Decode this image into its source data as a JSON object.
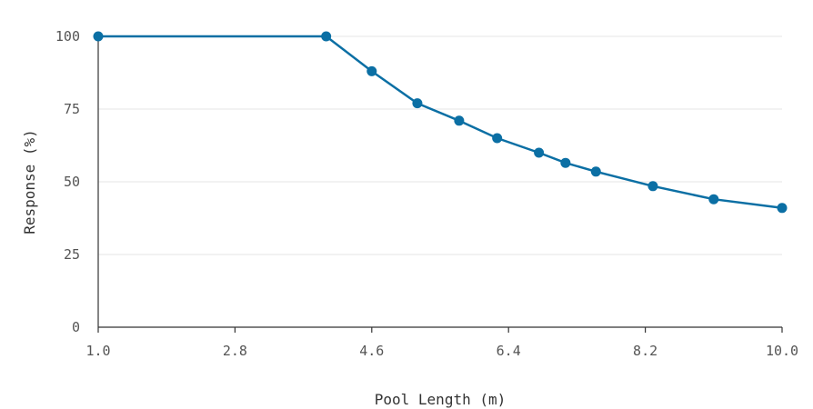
{
  "chart_data": {
    "type": "line",
    "title": "",
    "xlabel": "Pool Length (m)",
    "ylabel": "Response (%)",
    "xlim": [
      1.0,
      10.0
    ],
    "ylim": [
      0,
      100
    ],
    "x_ticks": [
      1.0,
      2.8,
      4.6,
      6.4,
      8.2,
      10.0
    ],
    "x_tick_labels": [
      "1.0",
      "2.8",
      "4.6",
      "6.4",
      "8.2",
      "10.0"
    ],
    "y_ticks": [
      0,
      25,
      50,
      75,
      100
    ],
    "y_tick_labels": [
      "0",
      "25",
      "50",
      "75",
      "100"
    ],
    "grid": true,
    "legend": "none",
    "series": [
      {
        "color": "#0b6fa4",
        "points": [
          {
            "x": 1.0,
            "y": 100
          },
          {
            "x": 4.0,
            "y": 100
          },
          {
            "x": 4.6,
            "y": 88
          },
          {
            "x": 5.2,
            "y": 77
          },
          {
            "x": 5.75,
            "y": 71
          },
          {
            "x": 6.25,
            "y": 65
          },
          {
            "x": 6.8,
            "y": 60
          },
          {
            "x": 7.15,
            "y": 56.5
          },
          {
            "x": 7.55,
            "y": 53.5
          },
          {
            "x": 8.3,
            "y": 48.5
          },
          {
            "x": 9.1,
            "y": 44
          },
          {
            "x": 10.0,
            "y": 41
          }
        ]
      }
    ]
  }
}
